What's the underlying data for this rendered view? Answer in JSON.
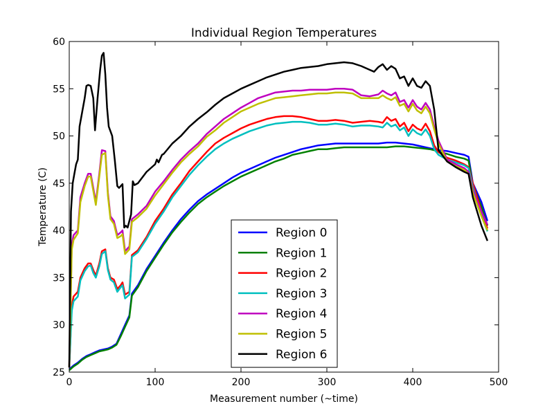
{
  "chart_data": {
    "type": "line",
    "title": "Individual Region Temperatures",
    "xlabel": "Measurement number (~time)",
    "ylabel": "Temperature (C)",
    "xlim": [
      0,
      500
    ],
    "ylim": [
      25,
      60
    ],
    "xticks": [
      0,
      100,
      200,
      300,
      400,
      500
    ],
    "yticks": [
      25,
      30,
      35,
      40,
      45,
      50,
      55,
      60
    ],
    "grid": false,
    "legend_position": "bottom-center",
    "series": [
      {
        "name": "Region 0",
        "color": "#0000ff",
        "x": [
          0,
          5,
          10,
          15,
          20,
          25,
          30,
          35,
          40,
          45,
          50,
          55,
          60,
          65,
          70,
          73,
          80,
          90,
          100,
          110,
          120,
          130,
          140,
          150,
          160,
          170,
          180,
          190,
          200,
          210,
          220,
          230,
          240,
          250,
          260,
          270,
          280,
          290,
          300,
          310,
          320,
          330,
          340,
          350,
          360,
          370,
          380,
          390,
          400,
          410,
          420,
          425,
          430,
          440,
          450,
          460,
          465,
          470,
          480,
          487
        ],
        "y": [
          25.3,
          25.7,
          26.0,
          26.4,
          26.7,
          26.9,
          27.1,
          27.3,
          27.4,
          27.5,
          27.7,
          28.0,
          29.0,
          30.0,
          31.0,
          33.3,
          34.2,
          35.9,
          37.3,
          38.7,
          40.0,
          41.2,
          42.2,
          43.1,
          43.8,
          44.4,
          45.0,
          45.6,
          46.1,
          46.5,
          46.9,
          47.3,
          47.7,
          48.0,
          48.3,
          48.6,
          48.8,
          49.0,
          49.1,
          49.2,
          49.2,
          49.2,
          49.2,
          49.2,
          49.2,
          49.3,
          49.3,
          49.2,
          49.1,
          48.9,
          48.7,
          48.6,
          48.5,
          48.4,
          48.2,
          48.0,
          47.8,
          45.0,
          43.0,
          41.0
        ]
      },
      {
        "name": "Region 1",
        "color": "#008000",
        "x": [
          0,
          5,
          10,
          15,
          20,
          25,
          30,
          35,
          40,
          45,
          50,
          55,
          60,
          65,
          70,
          73,
          80,
          90,
          100,
          110,
          120,
          130,
          140,
          150,
          160,
          170,
          180,
          190,
          200,
          210,
          220,
          230,
          240,
          250,
          260,
          270,
          280,
          290,
          300,
          310,
          320,
          330,
          340,
          350,
          360,
          370,
          380,
          390,
          400,
          410,
          420,
          425,
          430,
          440,
          450,
          460,
          465,
          470,
          480,
          487
        ],
        "y": [
          25.2,
          25.6,
          25.9,
          26.3,
          26.6,
          26.8,
          27.0,
          27.2,
          27.3,
          27.4,
          27.6,
          27.9,
          28.8,
          29.8,
          30.8,
          33.1,
          34.0,
          35.7,
          37.1,
          38.5,
          39.8,
          40.9,
          41.9,
          42.8,
          43.5,
          44.1,
          44.7,
          45.2,
          45.7,
          46.1,
          46.5,
          46.9,
          47.3,
          47.6,
          48.0,
          48.2,
          48.4,
          48.6,
          48.6,
          48.7,
          48.8,
          48.8,
          48.8,
          48.8,
          48.8,
          48.8,
          48.9,
          48.9,
          48.8,
          48.7,
          48.6,
          48.5,
          48.3,
          48.1,
          47.8,
          47.6,
          47.4,
          44.8,
          42.5,
          40.5
        ]
      },
      {
        "name": "Region 2",
        "color": "#ff0000",
        "x": [
          0,
          3,
          5,
          10,
          13,
          18,
          22,
          25,
          28,
          31,
          35,
          38,
          42,
          45,
          48,
          52,
          56,
          60,
          62,
          65,
          70,
          73,
          80,
          90,
          100,
          110,
          120,
          130,
          140,
          150,
          160,
          170,
          180,
          190,
          200,
          210,
          220,
          230,
          240,
          250,
          260,
          270,
          280,
          290,
          300,
          310,
          320,
          330,
          340,
          350,
          360,
          365,
          370,
          375,
          380,
          385,
          390,
          395,
          400,
          405,
          410,
          415,
          420,
          425,
          430,
          440,
          450,
          460,
          465,
          470,
          480,
          487
        ],
        "y": [
          25.5,
          32.0,
          33.0,
          33.5,
          35.0,
          36.0,
          36.5,
          36.5,
          35.8,
          35.2,
          36.5,
          37.8,
          38.0,
          36.0,
          35.0,
          34.8,
          33.8,
          34.2,
          34.5,
          33.2,
          33.5,
          37.4,
          37.9,
          39.3,
          41.0,
          42.3,
          43.8,
          45.0,
          46.3,
          47.3,
          48.3,
          49.2,
          49.8,
          50.3,
          50.8,
          51.2,
          51.5,
          51.8,
          52.0,
          52.1,
          52.1,
          52.0,
          51.8,
          51.6,
          51.6,
          51.7,
          51.6,
          51.4,
          51.5,
          51.6,
          51.5,
          51.4,
          52.0,
          51.6,
          51.8,
          51.0,
          51.4,
          50.5,
          51.2,
          50.8,
          50.6,
          51.3,
          50.5,
          49.0,
          48.3,
          47.7,
          47.4,
          47.0,
          46.7,
          45.0,
          42.0,
          40.2
        ]
      },
      {
        "name": "Region 3",
        "color": "#00bfbf",
        "x": [
          0,
          3,
          5,
          10,
          13,
          18,
          22,
          25,
          28,
          31,
          35,
          38,
          42,
          45,
          48,
          52,
          56,
          60,
          62,
          65,
          70,
          73,
          80,
          90,
          100,
          110,
          120,
          130,
          140,
          150,
          160,
          170,
          180,
          190,
          200,
          210,
          220,
          230,
          240,
          250,
          260,
          270,
          280,
          290,
          300,
          310,
          320,
          330,
          340,
          350,
          360,
          365,
          370,
          375,
          380,
          385,
          390,
          395,
          400,
          405,
          410,
          415,
          420,
          425,
          430,
          440,
          450,
          460,
          465,
          470,
          480,
          487
        ],
        "y": [
          25.5,
          31.5,
          32.5,
          33.0,
          34.7,
          35.7,
          36.2,
          36.3,
          35.5,
          35.0,
          36.2,
          37.5,
          37.8,
          35.8,
          34.8,
          34.5,
          33.5,
          34.0,
          34.2,
          32.8,
          33.2,
          37.2,
          37.7,
          39.1,
          40.7,
          42.0,
          43.5,
          44.7,
          45.9,
          46.9,
          47.8,
          48.6,
          49.2,
          49.7,
          50.1,
          50.5,
          50.8,
          51.1,
          51.3,
          51.4,
          51.5,
          51.5,
          51.4,
          51.2,
          51.2,
          51.3,
          51.2,
          51.0,
          51.1,
          51.1,
          51.0,
          50.9,
          51.4,
          51.0,
          51.2,
          50.6,
          50.9,
          50.0,
          50.7,
          50.3,
          50.1,
          50.7,
          50.0,
          48.6,
          48.0,
          47.5,
          47.2,
          46.9,
          46.6,
          44.6,
          41.6,
          39.9
        ]
      },
      {
        "name": "Region 4",
        "color": "#bf00bf",
        "x": [
          0,
          3,
          5,
          10,
          13,
          18,
          22,
          25,
          28,
          31,
          35,
          38,
          42,
          45,
          48,
          52,
          56,
          60,
          62,
          65,
          70,
          73,
          80,
          90,
          100,
          110,
          120,
          130,
          140,
          150,
          160,
          170,
          180,
          190,
          200,
          210,
          220,
          230,
          240,
          250,
          260,
          270,
          280,
          290,
          300,
          310,
          320,
          330,
          340,
          350,
          360,
          365,
          370,
          375,
          380,
          385,
          390,
          395,
          400,
          405,
          410,
          415,
          420,
          425,
          430,
          440,
          450,
          460,
          465,
          470,
          480,
          487
        ],
        "y": [
          25.5,
          38.5,
          39.5,
          40.0,
          43.5,
          45.0,
          46.0,
          46.0,
          44.5,
          43.0,
          46.0,
          48.5,
          48.4,
          44.0,
          41.5,
          41.0,
          39.5,
          39.8,
          40.0,
          37.8,
          38.3,
          41.2,
          41.7,
          42.6,
          44.1,
          45.2,
          46.4,
          47.5,
          48.4,
          49.2,
          50.2,
          51.0,
          51.8,
          52.4,
          53.0,
          53.5,
          54.0,
          54.3,
          54.6,
          54.7,
          54.8,
          54.8,
          54.9,
          54.9,
          54.9,
          55.0,
          55.0,
          54.9,
          54.3,
          54.2,
          54.4,
          54.8,
          54.5,
          54.3,
          54.6,
          53.6,
          53.8,
          53.0,
          53.8,
          53.1,
          52.8,
          53.5,
          52.8,
          51.0,
          49.5,
          47.5,
          47.0,
          46.6,
          46.2,
          44.3,
          42.0,
          40.6
        ]
      },
      {
        "name": "Region 5",
        "color": "#bfbf00",
        "x": [
          0,
          3,
          5,
          10,
          13,
          18,
          22,
          25,
          28,
          31,
          35,
          38,
          42,
          45,
          48,
          52,
          56,
          60,
          62,
          65,
          70,
          73,
          80,
          90,
          100,
          110,
          120,
          130,
          140,
          150,
          160,
          170,
          180,
          190,
          200,
          210,
          220,
          230,
          240,
          250,
          260,
          270,
          280,
          290,
          300,
          310,
          320,
          330,
          340,
          350,
          360,
          365,
          370,
          375,
          380,
          385,
          390,
          395,
          400,
          405,
          410,
          415,
          420,
          425,
          430,
          440,
          450,
          460,
          465,
          470,
          480,
          487
        ],
        "y": [
          25.5,
          38.0,
          39.0,
          39.7,
          43.0,
          44.7,
          45.7,
          45.7,
          44.2,
          42.7,
          45.7,
          48.0,
          48.2,
          43.7,
          41.2,
          40.7,
          39.2,
          39.4,
          39.6,
          37.5,
          38.0,
          40.9,
          41.4,
          42.3,
          43.7,
          44.9,
          46.1,
          47.2,
          48.1,
          48.9,
          49.9,
          50.6,
          51.4,
          52.0,
          52.6,
          53.0,
          53.4,
          53.7,
          54.0,
          54.1,
          54.2,
          54.3,
          54.4,
          54.5,
          54.5,
          54.6,
          54.6,
          54.5,
          54.0,
          54.0,
          54.0,
          54.3,
          54.0,
          53.8,
          54.1,
          53.2,
          53.4,
          52.6,
          53.4,
          52.7,
          52.4,
          53.1,
          52.4,
          50.7,
          49.2,
          47.3,
          46.8,
          46.4,
          46.0,
          44.0,
          41.5,
          40.0
        ]
      },
      {
        "name": "Region 6",
        "color": "#000000",
        "x": [
          0,
          2,
          4,
          6,
          8,
          10,
          12,
          15,
          18,
          20,
          22,
          25,
          28,
          30,
          33,
          36,
          38,
          40,
          42,
          44,
          46,
          48,
          50,
          53,
          56,
          58,
          62,
          64,
          66,
          68,
          70,
          72,
          74,
          76,
          80,
          90,
          100,
          102,
          104,
          108,
          110,
          120,
          130,
          140,
          150,
          160,
          170,
          180,
          190,
          200,
          210,
          220,
          230,
          240,
          250,
          260,
          270,
          280,
          290,
          300,
          310,
          320,
          330,
          340,
          350,
          355,
          360,
          365,
          370,
          375,
          380,
          385,
          390,
          395,
          400,
          405,
          410,
          415,
          420,
          425,
          430,
          440,
          450,
          460,
          465,
          470,
          480,
          487
        ],
        "y": [
          25.5,
          42.0,
          45.0,
          46.0,
          47.0,
          47.5,
          51.0,
          52.5,
          54.0,
          55.3,
          55.4,
          55.3,
          54.0,
          50.6,
          54.0,
          57.0,
          58.5,
          58.8,
          56.5,
          53.0,
          51.0,
          50.5,
          50.0,
          47.5,
          44.7,
          44.5,
          44.9,
          40.3,
          40.5,
          40.3,
          41.0,
          41.7,
          45.2,
          44.8,
          45.0,
          46.2,
          47.0,
          47.5,
          47.2,
          48.0,
          48.1,
          49.2,
          50.0,
          51.0,
          51.8,
          52.5,
          53.3,
          54.0,
          54.5,
          55.0,
          55.4,
          55.8,
          56.2,
          56.5,
          56.8,
          57.0,
          57.2,
          57.3,
          57.4,
          57.6,
          57.7,
          57.8,
          57.7,
          57.4,
          57.0,
          56.8,
          57.3,
          57.6,
          57.0,
          57.4,
          57.1,
          56.1,
          56.3,
          55.3,
          56.1,
          55.3,
          55.1,
          55.8,
          55.3,
          52.8,
          48.5,
          47.3,
          46.7,
          46.2,
          46.0,
          43.5,
          40.5,
          38.9
        ]
      }
    ]
  }
}
